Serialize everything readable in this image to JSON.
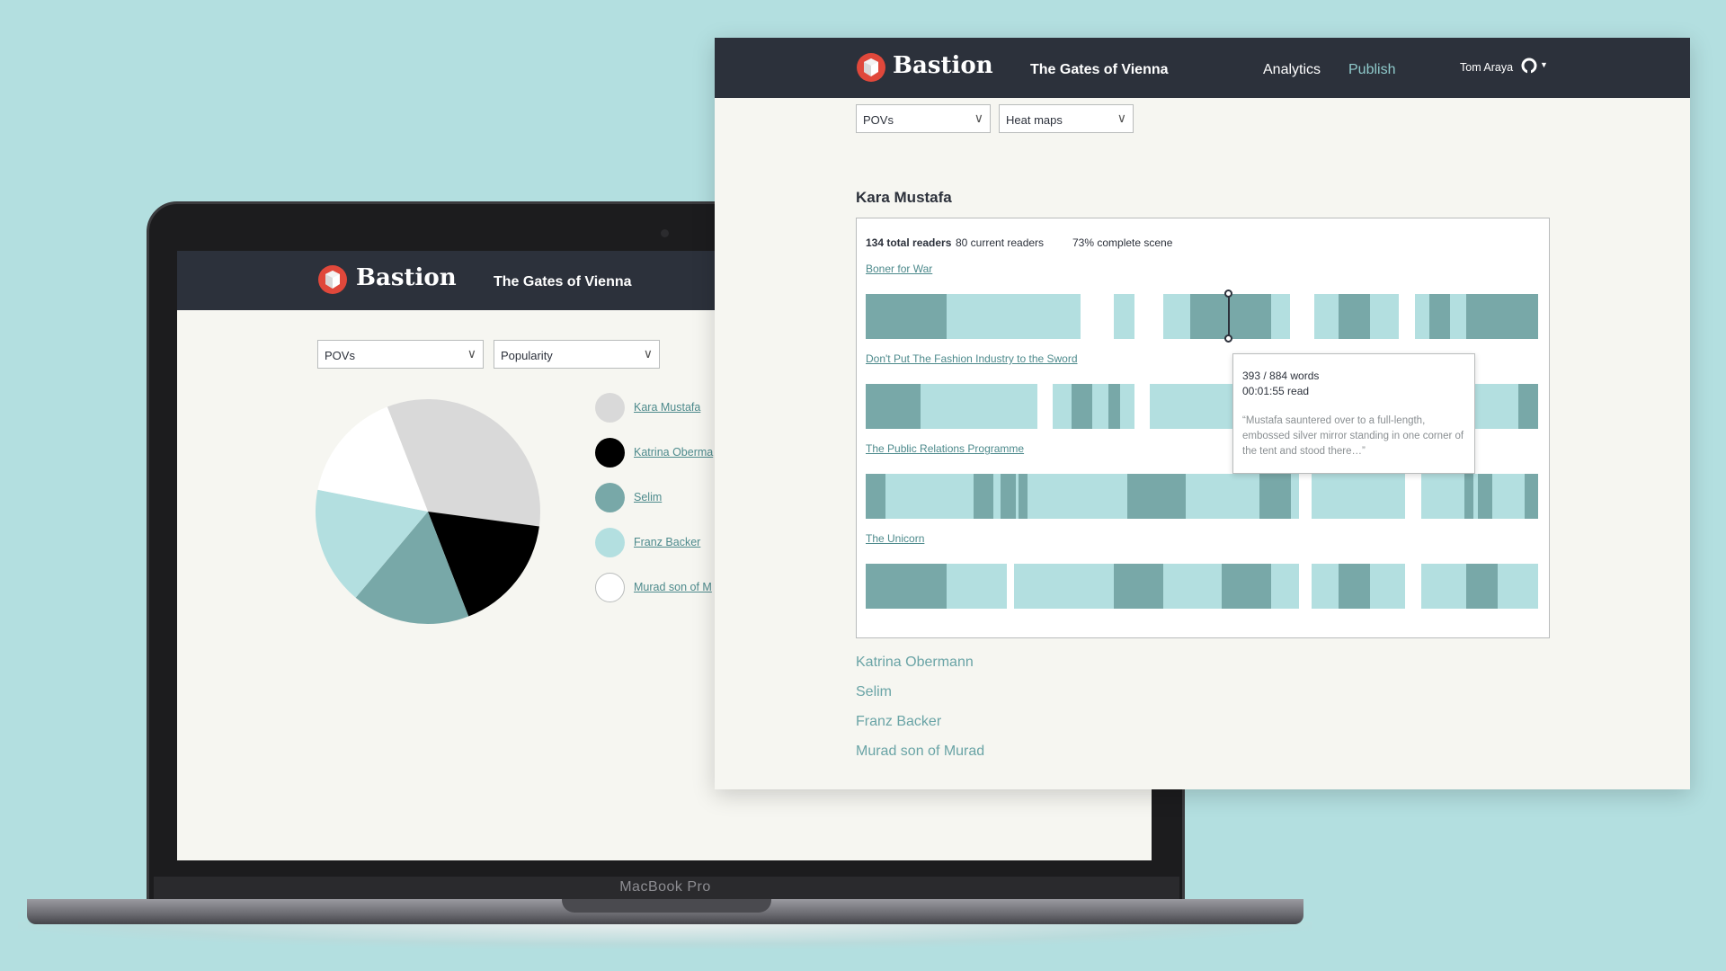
{
  "colors": {
    "background": "#b3dfe0",
    "header": "#2c313b",
    "page": "#f6f6f1",
    "teal_dark": "#78a8a8",
    "teal_light": "#b3dfe0",
    "accent_red": "#e0483b",
    "link": "#4d8a8c",
    "publish": "#8fcacb"
  },
  "laptop": {
    "model_label": "MacBook Pro",
    "app": {
      "brand": "Bastion",
      "book_title": "The Gates of Vienna",
      "filters": {
        "first": "POVs",
        "second": "Popularity"
      },
      "legend": [
        {
          "label": "Kara Mustafa",
          "color": "#d9d9d9"
        },
        {
          "label": "Katrina Oberma",
          "color": "#000000"
        },
        {
          "label": "Selim",
          "color": "#78a8a8"
        },
        {
          "label": "Franz Backer",
          "color": "#b3dfe0"
        },
        {
          "label": "Murad son of M",
          "color": "#ffffff"
        }
      ]
    }
  },
  "chart_data": {
    "type": "pie",
    "slices": [
      {
        "name": "Kara Mustafa",
        "value": 33
      },
      {
        "name": "Katrina Obermann",
        "value": 17
      },
      {
        "name": "Selim",
        "value": 17
      },
      {
        "name": "Franz Backer",
        "value": 17
      },
      {
        "name": "Murad son of Murad",
        "value": 16
      }
    ]
  },
  "window": {
    "brand": "Bastion",
    "book_title": "The Gates of Vienna",
    "nav": {
      "analytics": "Analytics",
      "publish": "Publish"
    },
    "user": {
      "name": "Tom Araya"
    },
    "filters": {
      "first": "POVs",
      "second": "Heat maps"
    },
    "selected_pov": "Kara Mustafa",
    "stats": {
      "total": "134 total readers",
      "current": "80 current readers",
      "complete": "73% complete scene"
    },
    "scenes": [
      {
        "title": "Boner for War"
      },
      {
        "title": "Don't Put The Fashion Industry to the Sword"
      },
      {
        "title": "The Public Relations Programme"
      },
      {
        "title": "The Unicorn"
      }
    ],
    "tooltip": {
      "words": "393 / 884 words",
      "time": "00:01:55 read",
      "quote": "“Mustafa sauntered over to a full-length, embossed silver mirror standing in one corner of the tent and stood there…”"
    },
    "other_povs": [
      "Katrina Obermann",
      "Selim",
      "Franz Backer",
      "Murad son of Murad"
    ]
  }
}
